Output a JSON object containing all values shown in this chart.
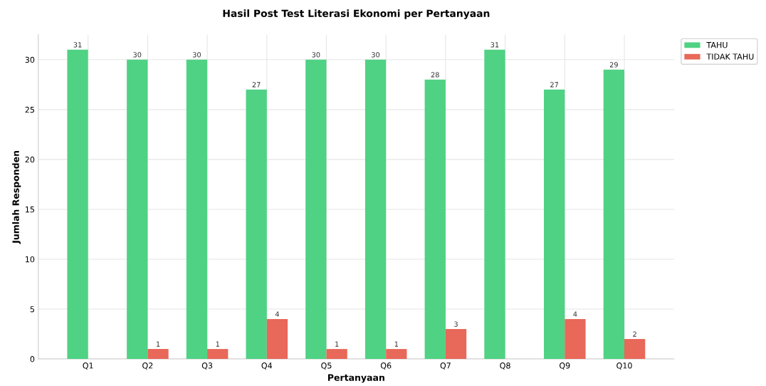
{
  "chart_data": {
    "type": "bar",
    "title": "Hasil Post Test Literasi Ekonomi per Pertanyaan",
    "xlabel": "Pertanyaan",
    "ylabel": "Jumlah Responden",
    "categories": [
      "Q1",
      "Q2",
      "Q3",
      "Q4",
      "Q5",
      "Q6",
      "Q7",
      "Q8",
      "Q9",
      "Q10"
    ],
    "series": [
      {
        "name": "TAHU",
        "color": "#4fd283",
        "values": [
          31,
          30,
          30,
          27,
          30,
          30,
          28,
          31,
          27,
          29
        ],
        "value_labels": [
          "31",
          "30",
          "30",
          "27",
          "30",
          "30",
          "28",
          "31",
          "27",
          "29"
        ]
      },
      {
        "name": "TIDAK TAHU",
        "color": "#e8685a",
        "values": [
          0,
          1,
          1,
          4,
          1,
          1,
          3,
          0,
          4,
          2
        ],
        "value_labels": [
          null,
          "1",
          "1",
          "4",
          "1",
          "1",
          "3",
          null,
          "4",
          "2"
        ]
      }
    ],
    "ylim": [
      0,
      32.5
    ],
    "yticks": [
      0,
      5,
      10,
      15,
      20,
      25,
      30
    ],
    "grid": true,
    "legend": "top right"
  }
}
